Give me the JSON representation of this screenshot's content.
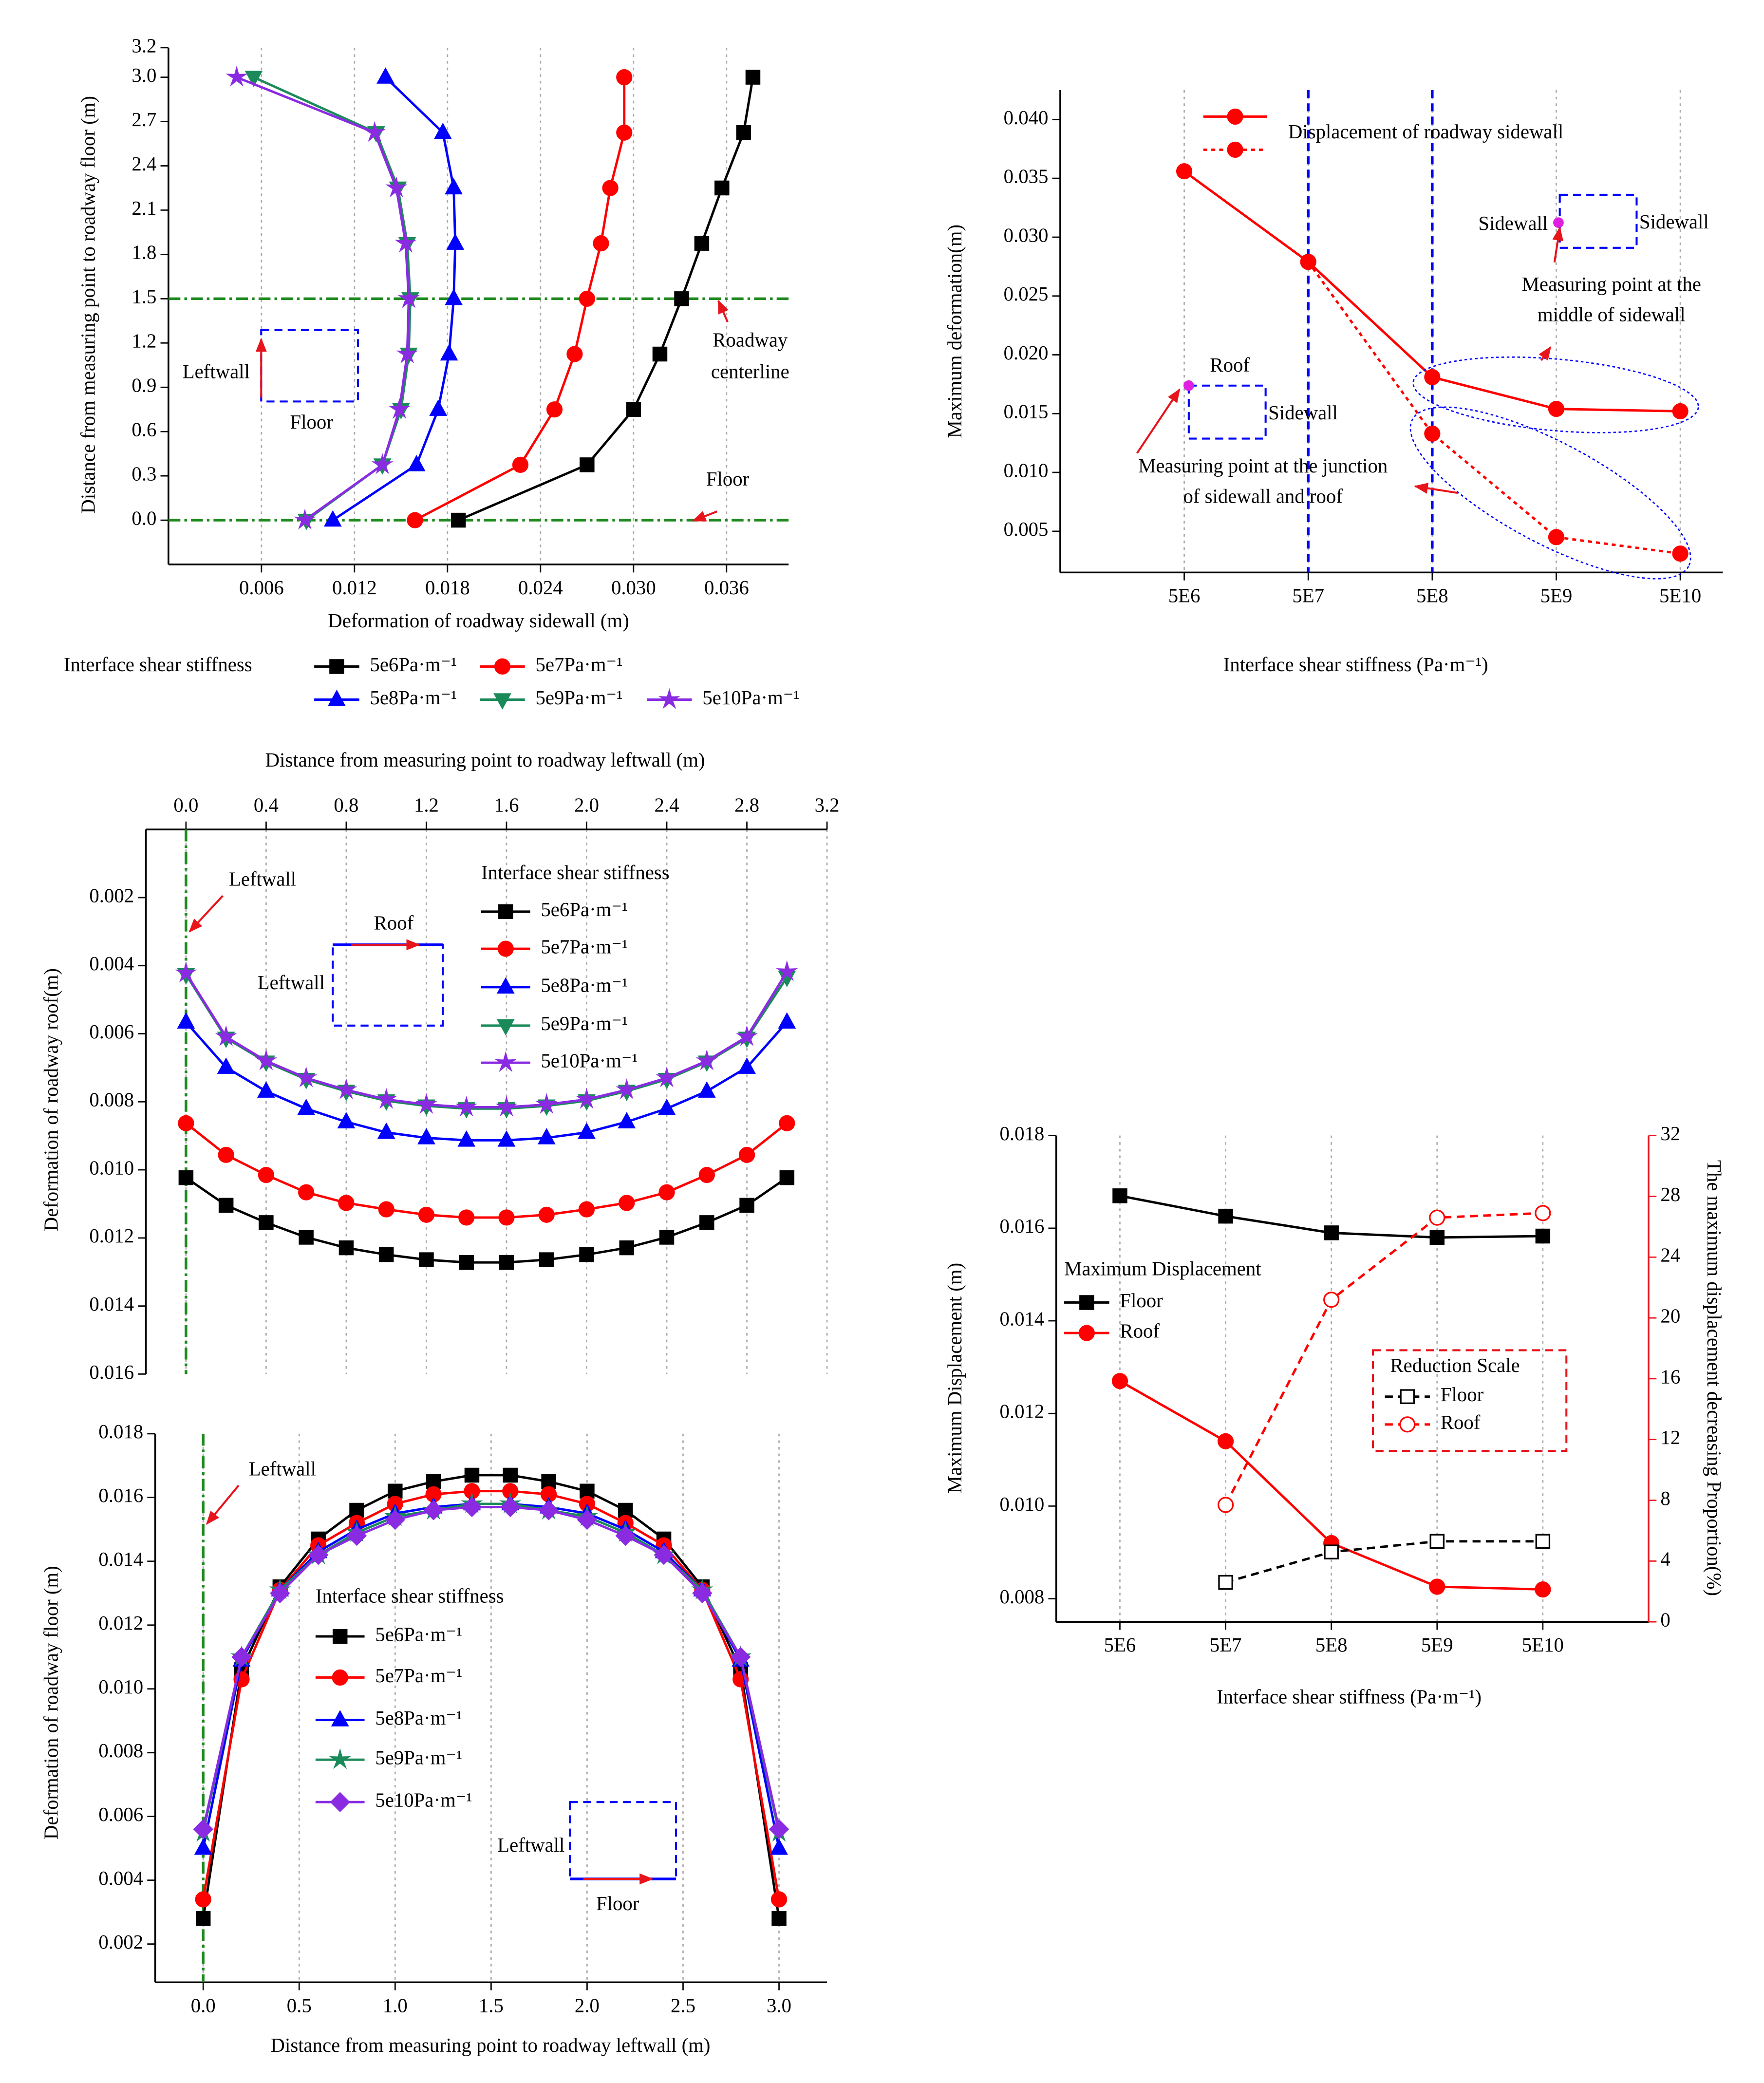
{
  "chart_data": [
    {
      "type": "line",
      "orientation": "horizontal",
      "xlabel": "Deformation of roadway sidewall (m)",
      "ylabel": "Distance from measuring point to roadway floor (m)",
      "y": [
        0,
        0.375,
        0.75,
        1.125,
        1.5,
        1.875,
        2.25,
        2.625,
        3
      ],
      "xlim": [
        0,
        0.04
      ],
      "xticks": [
        0.006,
        0.012,
        0.018,
        0.024,
        {
          "value": 0.03,
          "label": "0.030"
        },
        0.036
      ],
      "ylim": [
        -0.3,
        3.2
      ],
      "yticks": [
        {
          "value": 0,
          "label": "0.0"
        },
        0.3,
        0.6,
        0.9,
        1.2,
        1.5,
        1.8,
        2.1,
        2.4,
        2.7,
        {
          "value": 3,
          "label": "3.0"
        },
        3.2
      ],
      "grid": "x",
      "legend_title": "Interface shear stiffness",
      "series": [
        {
          "name": "5e6Pa·m⁻¹",
          "color": "#000000",
          "marker": "square",
          "values": [
            0.0187,
            0.027,
            0.03,
            0.0317,
            0.0331,
            0.0344,
            0.0357,
            0.0371,
            0.0377
          ]
        },
        {
          "name": "5e7Pa·m⁻¹",
          "color": "#ff0000",
          "marker": "circle",
          "values": [
            0.0159,
            0.0227,
            0.0249,
            0.0262,
            0.027,
            0.0279,
            0.0285,
            0.0294,
            0.0294
          ]
        },
        {
          "name": "5e8Pa·m⁻¹",
          "color": "#0000ff",
          "marker": "triangle",
          "values": [
            0.0106,
            0.016,
            0.0174,
            0.0181,
            0.0184,
            0.0185,
            0.0184,
            0.0177,
            0.014
          ]
        },
        {
          "name": "5e9Pa·m⁻¹",
          "color": "#1b8a5a",
          "marker": "triangle-down",
          "values": [
            0.0089,
            0.0138,
            0.015,
            0.0155,
            0.0156,
            0.0154,
            0.0148,
            0.0134,
            0.0055
          ]
        },
        {
          "name": "5e10Pa·m⁻¹",
          "color": "#8a2be2",
          "marker": "star",
          "values": [
            0.0088,
            0.0138,
            0.0149,
            0.0154,
            0.0155,
            0.0153,
            0.0147,
            0.0133,
            0.0044
          ]
        }
      ],
      "ref_lines": [
        {
          "axis": "y",
          "value": 1.5,
          "color": "#1f8a1f",
          "style": "dashdot"
        },
        {
          "axis": "y",
          "value": 0,
          "color": "#1f8a1f",
          "style": "dashdot"
        }
      ],
      "annotations": [
        "Roadway",
        "centerline",
        "Floor",
        "Leftwall",
        "Floor"
      ]
    },
    {
      "type": "line",
      "xscale": "log",
      "xlabel": "Interface shear stiffness (Pa·m⁻¹)",
      "ylabel": "Maximum deformation(m)",
      "x": [
        5000000,
        50000000,
        500000000,
        5000000000,
        50000000000
      ],
      "xlim": [
        500000,
        110000000000
      ],
      "xticks": [
        {
          "value": 5000000,
          "label": "5E6"
        },
        {
          "value": 50000000,
          "label": "5E7"
        },
        {
          "value": 500000000,
          "label": "5E8"
        },
        {
          "value": 5000000000,
          "label": "5E9"
        },
        {
          "value": 50000000000,
          "label": "5E10"
        }
      ],
      "ylim": [
        0.0015,
        0.0425
      ],
      "yticks": [
        0.005,
        {
          "value": 0.01,
          "label": "0.010"
        },
        0.015,
        {
          "value": 0.02,
          "label": "0.020"
        },
        0.025,
        {
          "value": 0.03,
          "label": "0.030"
        },
        0.035,
        {
          "value": 0.04,
          "label": "0.040"
        }
      ],
      "grid": "x",
      "series": [
        {
          "name": "Displacement of roadway sidewall",
          "color": "#ff0000",
          "marker": "circle",
          "values": [
            0.0356,
            0.0279,
            0.0181,
            0.0154,
            0.0152
          ]
        },
        {
          "color": "#ff0000",
          "marker": "circle",
          "dash": "dotted",
          "values": [
            null,
            0.0279,
            0.0133,
            0.0045,
            0.0031
          ]
        }
      ],
      "ref_lines": [
        {
          "axis": "x",
          "value": 50000000,
          "color": "#0000ff",
          "style": "dashed"
        },
        {
          "axis": "x",
          "value": 500000000,
          "color": "#0000ff",
          "style": "dashed"
        }
      ],
      "annotations": [
        "Sidewall",
        "Sidewall",
        "Measuring point at the",
        "middle of sidewall",
        "Roof",
        "Sidewall",
        "Measuring point at the junction",
        "of sidewall and roof"
      ]
    },
    {
      "type": "line",
      "x_axis_position": "top",
      "y_inverted": true,
      "xlabel": "Distance from measuring point to roadway leftwall (m)",
      "ylabel": "Deformation of roadway roof(m)",
      "x": [
        0,
        0.2,
        0.4,
        0.6,
        0.8,
        1,
        1.2,
        1.4,
        1.6,
        1.8,
        2,
        2.2,
        2.4,
        2.6,
        2.8,
        3
      ],
      "xlim": [
        -0.2,
        3.2
      ],
      "xticks": [
        {
          "value": 0,
          "label": "0.0"
        },
        0.4,
        0.8,
        1.2,
        1.6,
        {
          "value": 2,
          "label": "2.0"
        },
        2.4,
        2.8,
        3.2
      ],
      "ylim": [
        0,
        0.016
      ],
      "yticks": [
        0.002,
        0.004,
        0.006,
        0.008,
        {
          "value": 0.01,
          "label": "0.010"
        },
        0.012,
        0.014,
        0.016
      ],
      "grid": "x",
      "legend_title": "Interface shear stiffness",
      "series": [
        {
          "name": "5e6Pa·m⁻¹",
          "color": "#000000",
          "marker": "square",
          "values": [
            0.01023,
            0.01104,
            0.01155,
            0.01198,
            0.01229,
            0.01249,
            0.01264,
            0.01272,
            0.01272,
            0.01264,
            0.01249,
            0.01229,
            0.01198,
            0.01155,
            0.01104,
            0.01023
          ]
        },
        {
          "name": "5e7Pa·m⁻¹",
          "color": "#ff0000",
          "marker": "circle",
          "values": [
            0.00863,
            0.00956,
            0.01015,
            0.01066,
            0.01097,
            0.01116,
            0.01132,
            0.0114,
            0.0114,
            0.01132,
            0.01116,
            0.01097,
            0.01066,
            0.01015,
            0.00956,
            0.00863
          ]
        },
        {
          "name": "5e8Pa·m⁻¹",
          "color": "#0000ff",
          "marker": "triangle",
          "values": [
            0.00566,
            0.00699,
            0.00769,
            0.0082,
            0.00859,
            0.0089,
            0.00906,
            0.00913,
            0.00913,
            0.00906,
            0.0089,
            0.00859,
            0.0082,
            0.00769,
            0.00699,
            0.00566
          ]
        },
        {
          "name": "5e9Pa·m⁻¹",
          "color": "#1b8a5a",
          "marker": "triangle-down",
          "values": [
            0.00426,
            0.00613,
            0.00683,
            0.00734,
            0.00769,
            0.00797,
            0.00812,
            0.0082,
            0.0082,
            0.00812,
            0.00797,
            0.00769,
            0.00734,
            0.00683,
            0.00613,
            0.00434
          ]
        },
        {
          "name": "5e10Pa·m⁻¹",
          "color": "#8a2be2",
          "marker": "star",
          "values": [
            0.00422,
            0.00609,
            0.0068,
            0.0073,
            0.00765,
            0.00793,
            0.00808,
            0.00816,
            0.00816,
            0.00808,
            0.00793,
            0.00765,
            0.0073,
            0.0068,
            0.00609,
            0.00418
          ]
        }
      ],
      "ref_lines": [
        {
          "axis": "x",
          "value": 0,
          "color": "#1f8a1f",
          "style": "dashdot"
        }
      ],
      "annotations": [
        "Leftwall",
        "Leftwall",
        "Roof"
      ]
    },
    {
      "type": "line",
      "xlabel": "Distance from measuring point to roadway leftwall (m)",
      "ylabel": "Deformation of roadway floor (m)",
      "x": [
        0,
        0.2,
        0.4,
        0.6,
        0.8,
        1,
        1.2,
        1.4,
        1.6,
        1.8,
        2,
        2.2,
        2.4,
        2.6,
        2.8,
        3
      ],
      "xlim": [
        -0.25,
        3.25
      ],
      "xticks": [
        {
          "value": 0,
          "label": "0.0"
        },
        0.5,
        {
          "value": 1,
          "label": "1.0"
        },
        1.5,
        {
          "value": 2,
          "label": "2.0"
        },
        2.5,
        {
          "value": 3,
          "label": "3.0"
        }
      ],
      "ylim": [
        0.0008,
        0.018
      ],
      "yticks": [
        0.002,
        0.004,
        0.006,
        0.008,
        {
          "value": 0.01,
          "label": "0.010"
        },
        0.012,
        0.014,
        0.016,
        0.018
      ],
      "grid": "x",
      "legend_title": "Interface shear stiffness",
      "series": [
        {
          "name": "5e6Pa·m⁻¹",
          "color": "#000000",
          "marker": "square",
          "values": [
            0.0028,
            0.0106,
            0.0132,
            0.0147,
            0.0156,
            0.0162,
            0.0165,
            0.0167,
            0.0167,
            0.0165,
            0.0162,
            0.0156,
            0.0147,
            0.0132,
            0.0106,
            0.0028
          ]
        },
        {
          "name": "5e7Pa·m⁻¹",
          "color": "#ff0000",
          "marker": "circle",
          "values": [
            0.0034,
            0.0103,
            0.0131,
            0.0145,
            0.0152,
            0.0158,
            0.0161,
            0.0162,
            0.0162,
            0.0161,
            0.0158,
            0.0152,
            0.0145,
            0.0131,
            0.0103,
            0.0034
          ]
        },
        {
          "name": "5e8Pa·m⁻¹",
          "color": "#0000ff",
          "marker": "triangle",
          "values": [
            0.005,
            0.0109,
            0.0131,
            0.0143,
            0.015,
            0.0155,
            0.0157,
            0.0158,
            0.0158,
            0.0157,
            0.0155,
            0.015,
            0.0143,
            0.0131,
            0.0109,
            0.005
          ]
        },
        {
          "name": "5e9Pa·m⁻¹",
          "color": "#1b8a5a",
          "marker": "star",
          "values": [
            0.0055,
            0.011,
            0.0131,
            0.0142,
            0.0149,
            0.0154,
            0.0156,
            0.0158,
            0.0158,
            0.0156,
            0.0154,
            0.0149,
            0.0142,
            0.0131,
            0.011,
            0.0055
          ]
        },
        {
          "name": "5e10Pa·m⁻¹",
          "color": "#8a2be2",
          "marker": "diamond",
          "values": [
            0.0056,
            0.011,
            0.013,
            0.0142,
            0.0148,
            0.0153,
            0.0156,
            0.0157,
            0.0157,
            0.0156,
            0.0153,
            0.0148,
            0.0142,
            0.013,
            0.011,
            0.0056
          ]
        }
      ],
      "ref_lines": [
        {
          "axis": "x",
          "value": 0,
          "color": "#1f8a1f",
          "style": "dashdot"
        }
      ],
      "annotations": [
        "Leftwall",
        "Leftwall",
        "Floor"
      ]
    },
    {
      "type": "line",
      "xscale": "log",
      "xlabel": "Interface shear stiffness (Pa·m⁻¹)",
      "ylabel": "Maximum Displacement (m)",
      "y2label": "The maximum displacement decreasing Proportion(%)",
      "x": [
        5000000,
        50000000,
        500000000,
        5000000000,
        50000000000
      ],
      "xlim": [
        1250000,
        500000000000
      ],
      "xticks": [
        {
          "value": 5000000,
          "label": "5E6"
        },
        {
          "value": 50000000,
          "label": "5E7"
        },
        {
          "value": 500000000,
          "label": "5E8"
        },
        {
          "value": 5000000000,
          "label": "5E9"
        },
        {
          "value": 50000000000,
          "label": "5E10"
        }
      ],
      "ylim": [
        0.0075,
        0.018
      ],
      "yticks": [
        0.008,
        {
          "value": 0.01,
          "label": "0.010"
        },
        0.012,
        0.014,
        0.016,
        0.018
      ],
      "y2lim": [
        0,
        32
      ],
      "y2ticks": [
        0,
        4,
        8,
        12,
        16,
        20,
        24,
        28,
        32
      ],
      "y2_axis_color": "#e8141b",
      "grid": "x",
      "legend_titles": [
        "Maximum Displacement",
        "Reduction Scale"
      ],
      "series": [
        {
          "name": "Floor",
          "color": "#000000",
          "marker": "square",
          "values": [
            0.0167,
            0.01626,
            0.0159,
            0.0158,
            0.01583
          ]
        },
        {
          "name": "Roof",
          "color": "#ff0000",
          "marker": "circle",
          "values": [
            0.0127,
            0.0114,
            0.0092,
            0.00826,
            0.0082
          ]
        },
        {
          "name": "Floor",
          "color": "#000000",
          "marker": "half-square",
          "dash": "dashed",
          "axis": "y2",
          "values": [
            null,
            2.6,
            4.6,
            5.3,
            5.3
          ]
        },
        {
          "name": "Roof",
          "color": "#ff0000",
          "marker": "half-circle",
          "dash": "dashed",
          "axis": "y2",
          "values": [
            null,
            7.7,
            21.2,
            26.6,
            26.9
          ]
        }
      ]
    }
  ]
}
